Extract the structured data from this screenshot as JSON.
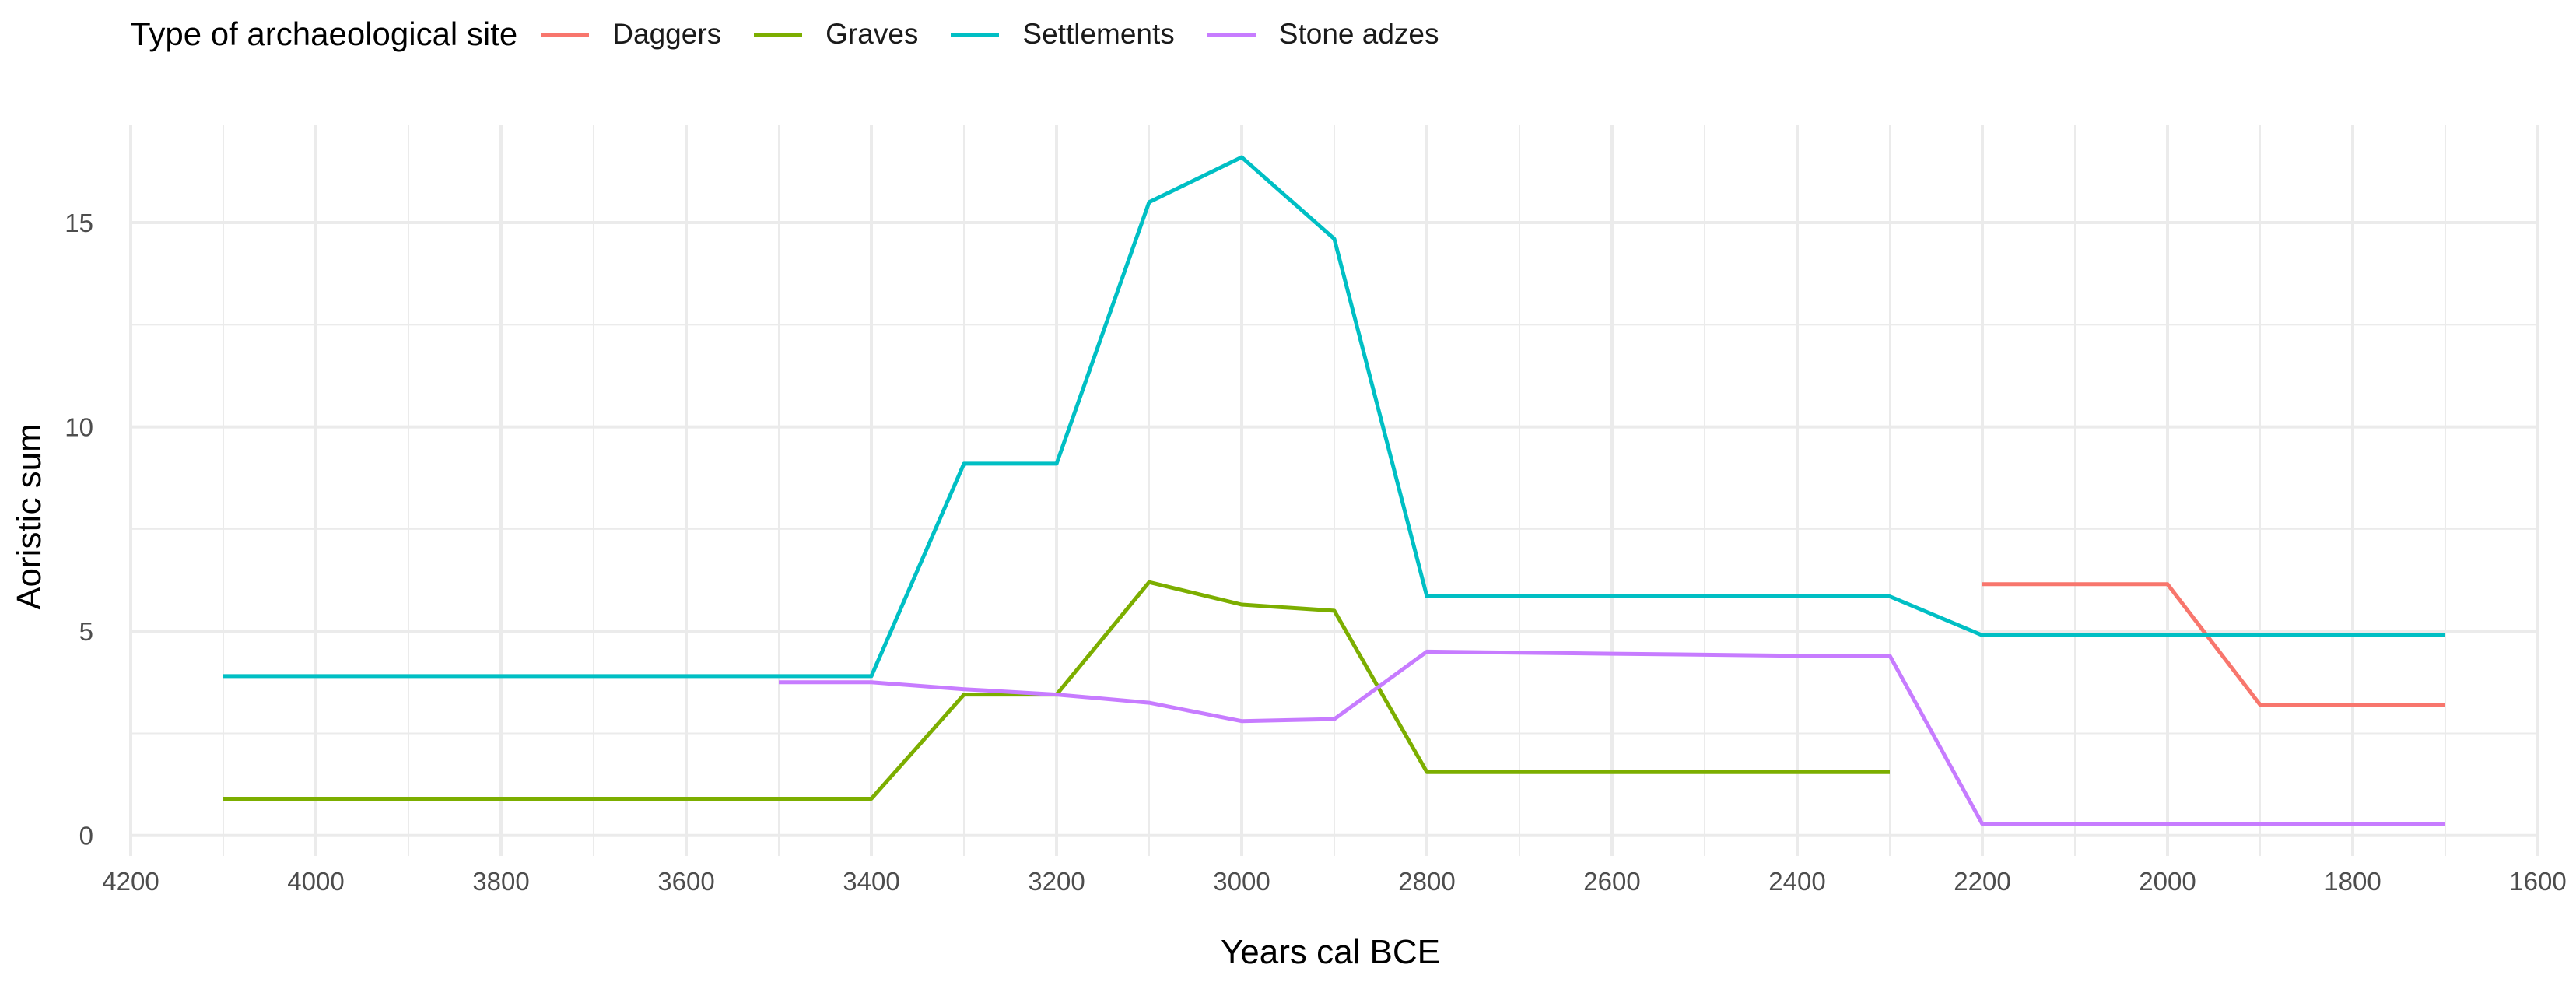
{
  "chart_data": {
    "type": "line",
    "xlabel": "Years cal BCE",
    "ylabel": "Aoristic sum",
    "x_reversed": true,
    "xlim": [
      4200,
      1600
    ],
    "ylim": [
      0,
      17
    ],
    "x_ticks": [
      4200,
      4000,
      3800,
      3600,
      3400,
      3200,
      3000,
      2800,
      2600,
      2400,
      2200,
      2000,
      1800,
      1600
    ],
    "y_ticks": [
      0,
      5,
      10,
      15
    ],
    "grid": true,
    "legend": {
      "title": "Type of archaeological site",
      "position": "top"
    },
    "series": [
      {
        "name": "Daggers",
        "color": "#F8766D",
        "points": [
          [
            2200,
            6.15
          ],
          [
            2000,
            6.15
          ],
          [
            1900,
            3.2
          ],
          [
            1700,
            3.2
          ]
        ]
      },
      {
        "name": "Graves",
        "color": "#7CAE00",
        "points": [
          [
            4100,
            0.9
          ],
          [
            3400,
            0.9
          ],
          [
            3300,
            3.45
          ],
          [
            3200,
            3.45
          ],
          [
            3100,
            6.2
          ],
          [
            3000,
            5.65
          ],
          [
            2900,
            5.5
          ],
          [
            2800,
            1.55
          ],
          [
            2300,
            1.55
          ]
        ]
      },
      {
        "name": "Settlements",
        "color": "#00BFC4",
        "points": [
          [
            4100,
            3.9
          ],
          [
            3400,
            3.9
          ],
          [
            3300,
            9.1
          ],
          [
            3200,
            9.1
          ],
          [
            3100,
            15.5
          ],
          [
            3000,
            16.6
          ],
          [
            2900,
            14.6
          ],
          [
            2800,
            5.85
          ],
          [
            2300,
            5.85
          ],
          [
            2200,
            4.9
          ],
          [
            1700,
            4.9
          ]
        ]
      },
      {
        "name": "Stone adzes",
        "color": "#C77CFF",
        "points": [
          [
            3500,
            3.75
          ],
          [
            3400,
            3.75
          ],
          [
            3300,
            3.58
          ],
          [
            3200,
            3.45
          ],
          [
            3100,
            3.25
          ],
          [
            3000,
            2.8
          ],
          [
            2900,
            2.85
          ],
          [
            2800,
            4.5
          ],
          [
            2600,
            4.45
          ],
          [
            2400,
            4.4
          ],
          [
            2300,
            4.4
          ],
          [
            2200,
            0.28
          ],
          [
            1700,
            0.28
          ]
        ]
      }
    ]
  }
}
